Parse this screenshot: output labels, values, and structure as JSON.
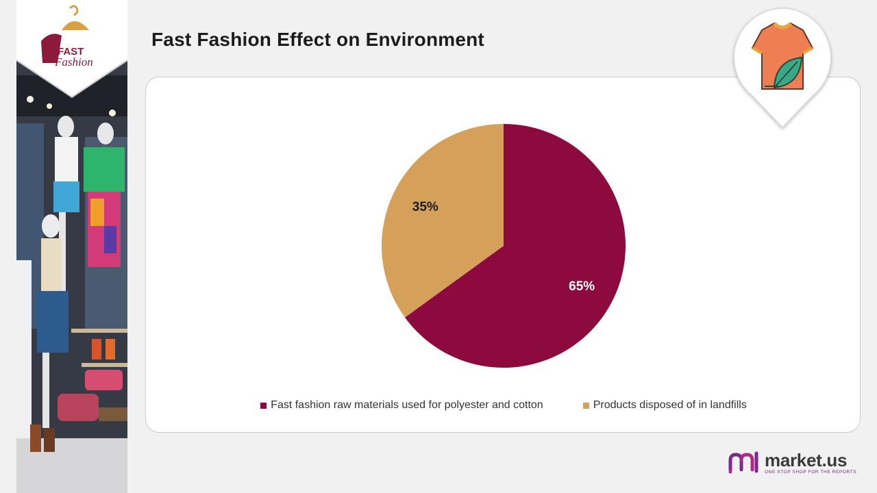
{
  "page": {
    "title": "Fast Fashion Effect on Environment"
  },
  "logo": {
    "line1": "FAST",
    "line2": "Fashion"
  },
  "brand": {
    "name": "market.us",
    "tagline": "ONE STOP SHOP FOR THE REPORTS"
  },
  "icons": {
    "hanger": "hanger-icon",
    "pin": "tshirt-leaf-icon",
    "brand": "market-us-logo-icon"
  },
  "colors": {
    "maroon": "#8c0a3d",
    "tan": "#d4a05a"
  },
  "chart_data": {
    "type": "pie",
    "title": "",
    "legend_position": "bottom",
    "slices": [
      {
        "name": "Fast fashion raw materials used for polyester and cotton",
        "value": 65,
        "label": "65%",
        "color": "#8c0a3d",
        "label_color": "#ffffff"
      },
      {
        "name": "Products disposed of in landfills",
        "value": 35,
        "label": "35%",
        "color": "#d4a05a",
        "label_color": "#1c1c1c"
      }
    ]
  }
}
